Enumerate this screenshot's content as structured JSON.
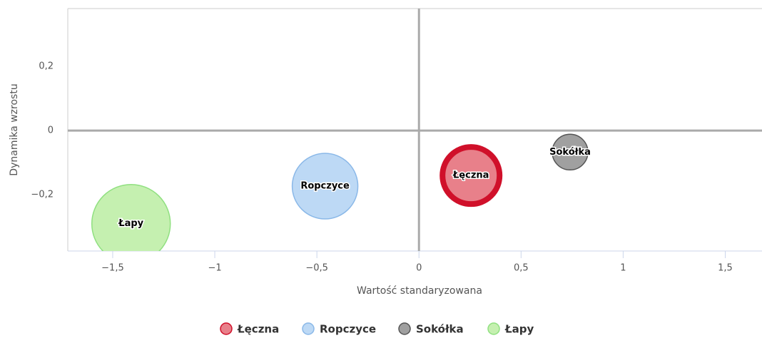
{
  "chart_data": {
    "type": "bubble",
    "x_label": "Wartość standaryzowana",
    "y_label": "Dynamika wzrostu",
    "xlim": [
      -1.72,
      1.68
    ],
    "ylim": [
      -0.375,
      0.38
    ],
    "xticks": [
      {
        "value": -1.5,
        "label": "−1,5"
      },
      {
        "value": -1,
        "label": "−1"
      },
      {
        "value": -0.5,
        "label": "−0,5"
      },
      0,
      {
        "value": 0.5,
        "label": "0,5"
      },
      1,
      {
        "value": 1.5,
        "label": "1,5"
      }
    ],
    "yticks": [
      {
        "value": -0.2,
        "label": "−0,2"
      },
      0,
      {
        "value": 0.2,
        "label": "0,2"
      }
    ],
    "legend": "bottom",
    "series": [
      {
        "name": "Łęczna",
        "color": "#e8808a",
        "border": "#d0102a",
        "x": [
          0.255
        ],
        "values": [
          -0.14
        ],
        "sizes": [
          40
        ]
      },
      {
        "name": "Ropczyce",
        "color": "#bdd9f5",
        "border": "#8ab8e8",
        "x": [
          -0.46
        ],
        "values": [
          -0.173
        ],
        "sizes": [
          46
        ]
      },
      {
        "name": "Sokółka",
        "color": "#a0a0a0",
        "border": "#555555",
        "x": [
          0.74
        ],
        "values": [
          -0.067
        ],
        "sizes": [
          25
        ]
      },
      {
        "name": "Łapy",
        "color": "#c5f0b0",
        "border": "#90e080",
        "x": [
          -1.41
        ],
        "values": [
          -0.29
        ],
        "sizes": [
          55
        ]
      }
    ]
  }
}
